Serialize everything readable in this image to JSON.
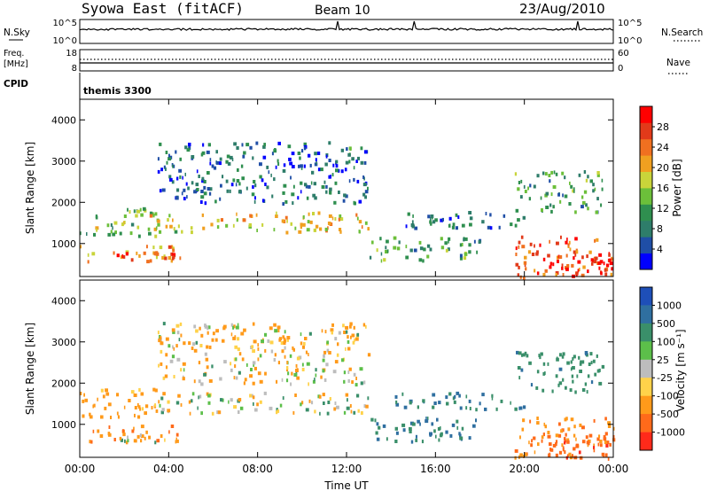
{
  "header": {
    "station": "Syowa East (fitACF)",
    "beam": "Beam 10",
    "date": "23/Aug/2010"
  },
  "top_panels": {
    "nsky": {
      "label": "N.Sky",
      "ticks": [
        "10^5",
        "10^0"
      ]
    },
    "nsearch": {
      "label": "N.Search",
      "ticks": [
        "10^5",
        "10^0"
      ]
    },
    "freq": {
      "label_line1": "Freq.",
      "label_line2": "[MHz]",
      "ticks": [
        "18",
        "8"
      ]
    },
    "nave": {
      "label": "Nave",
      "ticks": [
        "60",
        "0"
      ]
    },
    "cpid": {
      "label": "CPID",
      "value": "themis 3300"
    }
  },
  "axes": {
    "ylabel": "Slant Range [km]",
    "xlabel": "Time UT",
    "y_ticks": [
      "1000",
      "2000",
      "3000",
      "4000"
    ],
    "x_ticks": [
      "00:00",
      "04:00",
      "08:00",
      "12:00",
      "16:00",
      "20:00",
      "00:00"
    ]
  },
  "power_colorbar": {
    "label": "Power [dB]",
    "ticks": [
      "4",
      "8",
      "12",
      "16",
      "20",
      "24",
      "28"
    ],
    "colors": [
      "#0000ff",
      "#1f4ea6",
      "#2e7d6a",
      "#2f8f4f",
      "#6cbf3a",
      "#c9d43a",
      "#f0a020",
      "#f07020",
      "#e23a1a",
      "#ff0000"
    ]
  },
  "velocity_colorbar": {
    "label": "Velocity [m s⁻¹]",
    "ticks": [
      "1000",
      "500",
      "100",
      "25",
      "-25",
      "-100",
      "-500",
      "-1000"
    ],
    "colors": [
      "#1e4fb8",
      "#2f6fa0",
      "#3a8f6a",
      "#5cbf4a",
      "#bdbdbd",
      "#ffd24a",
      "#ff9a1a",
      "#ff6a1a",
      "#ff2a1a"
    ]
  },
  "chart_data": [
    {
      "type": "heatmap",
      "title": "Power",
      "xlabel": "Time UT",
      "ylabel": "Slant Range [km]",
      "x_range": [
        "00:00",
        "24:00"
      ],
      "ylim": [
        200,
        4500
      ],
      "colorbar": {
        "label": "Power [dB]",
        "ticks": [
          4,
          8,
          12,
          16,
          20,
          24,
          28
        ]
      },
      "echo_regions": [
        {
          "t_start": 0.0,
          "t_end": 4.5,
          "r_start": 600,
          "r_end": 1000,
          "value": 22
        },
        {
          "t_start": 1.5,
          "t_end": 4.5,
          "r_start": 600,
          "r_end": 800,
          "value": 28
        },
        {
          "t_start": 0.0,
          "t_end": 3.5,
          "r_start": 1200,
          "r_end": 1900,
          "value": 14
        },
        {
          "t_start": 3.0,
          "t_end": 13.0,
          "r_start": 1300,
          "r_end": 1800,
          "value": 18
        },
        {
          "t_start": 3.5,
          "t_end": 13.0,
          "r_start": 2000,
          "r_end": 3500,
          "value": 8
        },
        {
          "t_start": 11.5,
          "t_end": 12.5,
          "r_start": 3100,
          "r_end": 3400,
          "value": 13
        },
        {
          "t_start": 13.0,
          "t_end": 18.0,
          "r_start": 600,
          "r_end": 1200,
          "value": 12
        },
        {
          "t_start": 14.0,
          "t_end": 20.0,
          "r_start": 1400,
          "r_end": 1800,
          "value": 8
        },
        {
          "t_start": 19.5,
          "t_end": 24.0,
          "r_start": 200,
          "r_end": 1200,
          "value": 24
        },
        {
          "t_start": 21.0,
          "t_end": 24.0,
          "r_start": 200,
          "r_end": 800,
          "value": 28
        },
        {
          "t_start": 19.5,
          "t_end": 23.5,
          "r_start": 1800,
          "r_end": 2800,
          "value": 12
        }
      ]
    },
    {
      "type": "heatmap",
      "title": "Velocity",
      "xlabel": "Time UT",
      "ylabel": "Slant Range [km]",
      "x_range": [
        "00:00",
        "24:00"
      ],
      "ylim": [
        200,
        4500
      ],
      "colorbar": {
        "label": "Velocity [m s⁻¹]",
        "ticks": [
          1000,
          500,
          100,
          25,
          -25,
          -100,
          -500,
          -1000
        ]
      },
      "echo_regions": [
        {
          "t_start": 0.0,
          "t_end": 4.5,
          "r_start": 600,
          "r_end": 1000,
          "value": -300
        },
        {
          "t_start": 1.5,
          "t_end": 4.5,
          "r_start": 600,
          "r_end": 800,
          "value": -20
        },
        {
          "t_start": 0.0,
          "t_end": 3.5,
          "r_start": 1200,
          "r_end": 1900,
          "value": -150
        },
        {
          "t_start": 3.0,
          "t_end": 13.0,
          "r_start": 1300,
          "r_end": 1800,
          "value": 0
        },
        {
          "t_start": 3.5,
          "t_end": 13.0,
          "r_start": 2000,
          "r_end": 3500,
          "value": -60
        },
        {
          "t_start": 11.5,
          "t_end": 12.5,
          "r_start": 3100,
          "r_end": 3400,
          "value": 0
        },
        {
          "t_start": 13.0,
          "t_end": 18.0,
          "r_start": 600,
          "r_end": 1200,
          "value": 300
        },
        {
          "t_start": 14.0,
          "t_end": 20.0,
          "r_start": 1400,
          "r_end": 1800,
          "value": 300
        },
        {
          "t_start": 19.5,
          "t_end": 24.0,
          "r_start": 200,
          "r_end": 1200,
          "value": -300
        },
        {
          "t_start": 21.0,
          "t_end": 24.0,
          "r_start": 200,
          "r_end": 800,
          "value": -600
        },
        {
          "t_start": 19.5,
          "t_end": 23.5,
          "r_start": 1800,
          "r_end": 2800,
          "value": 200
        }
      ]
    }
  ]
}
